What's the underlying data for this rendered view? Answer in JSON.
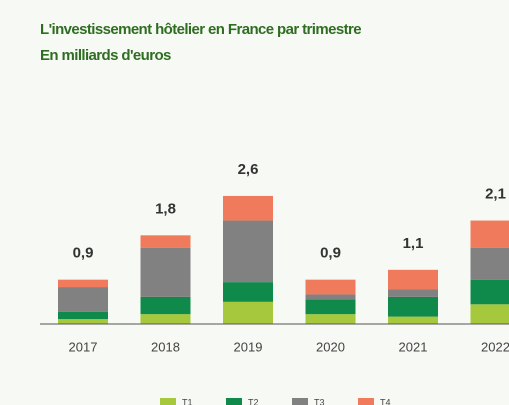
{
  "chart_data": {
    "type": "stacked_bar",
    "title": "L'investissement hôtelier en France par trimestre",
    "subtitle": "En milliards d'euros",
    "categories": [
      "2017",
      "2018",
      "2019",
      "2020",
      "2021",
      "2022"
    ],
    "series": [
      {
        "name": "T1",
        "color": "#a5c83c",
        "values": [
          0.1,
          0.2,
          0.45,
          0.2,
          0.15,
          0.4
        ]
      },
      {
        "name": "T2",
        "color": "#108a4b",
        "values": [
          0.15,
          0.35,
          0.4,
          0.3,
          0.4,
          0.5
        ]
      },
      {
        "name": "T3",
        "color": "#818181",
        "values": [
          0.5,
          1.0,
          1.25,
          0.1,
          0.15,
          0.65
        ]
      },
      {
        "name": "T4",
        "color": "#f07b5c",
        "values": [
          0.15,
          0.25,
          0.5,
          0.3,
          0.4,
          0.55
        ]
      }
    ],
    "totals": [
      0.9,
      1.8,
      2.6,
      0.9,
      1.1,
      2.1
    ],
    "total_labels": [
      "0,9",
      "1,8",
      "2,6",
      "0,9",
      "1,1",
      "2,1"
    ],
    "ylim": [
      0,
      2.7
    ],
    "legend": "bottom"
  }
}
